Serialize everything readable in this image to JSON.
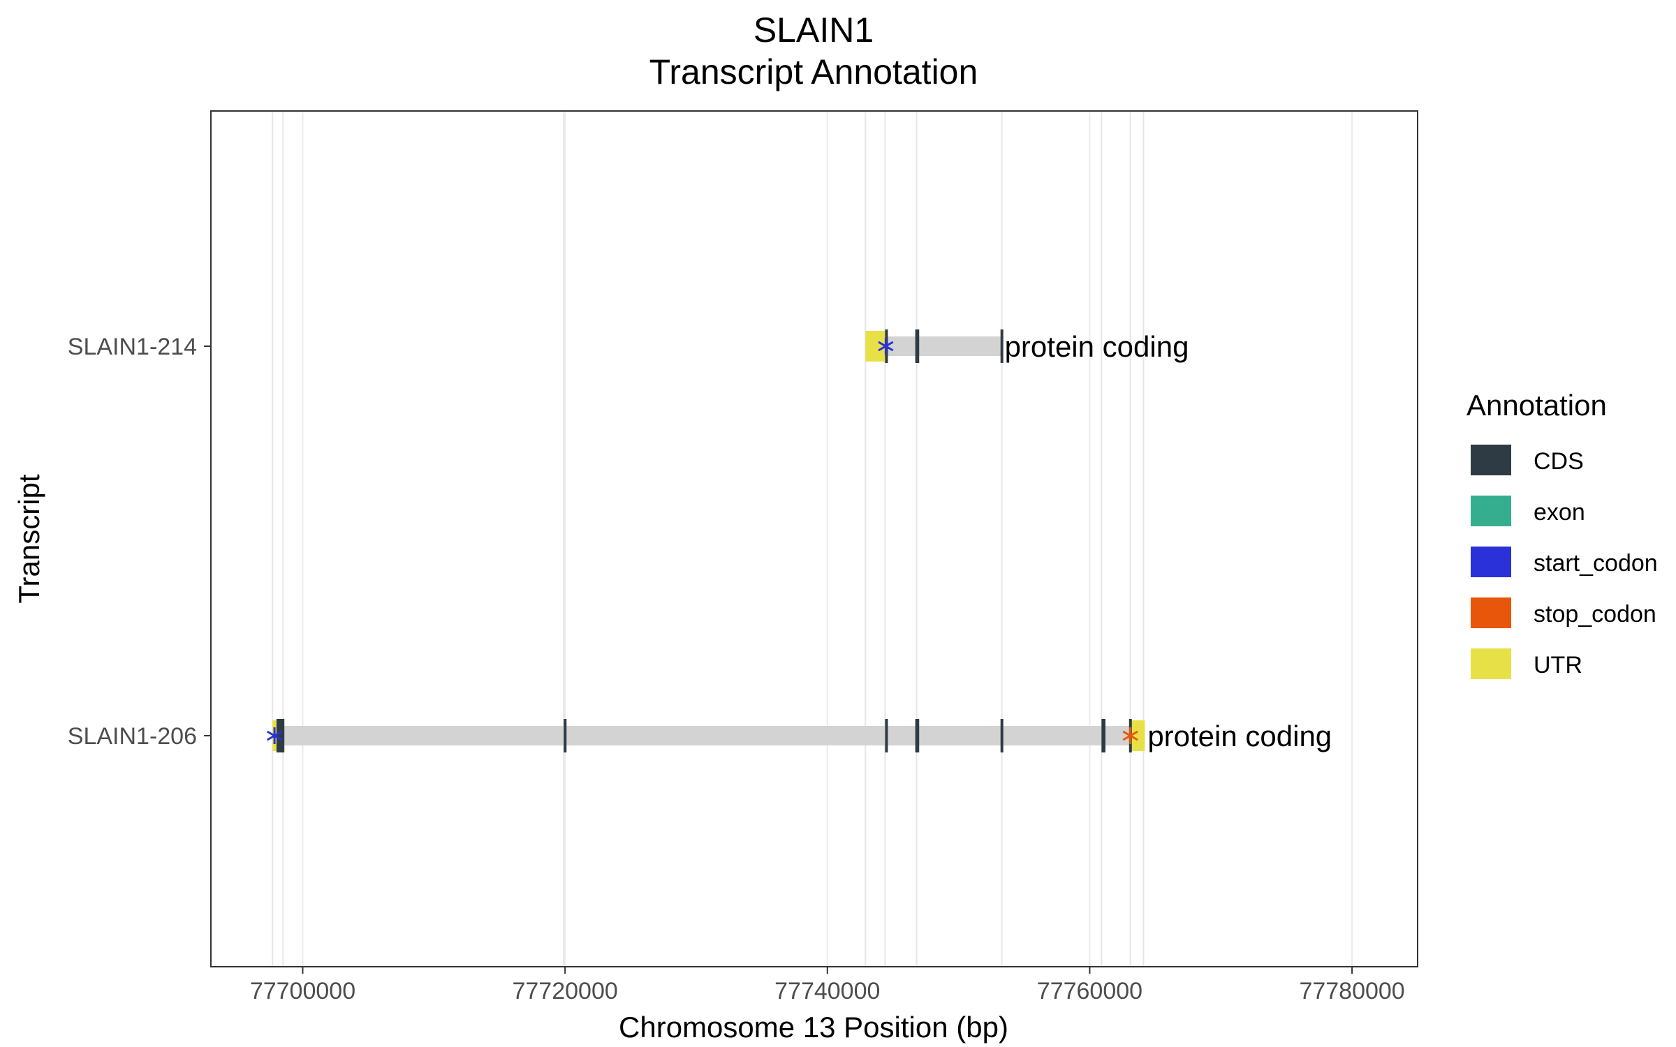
{
  "chart_data": {
    "type": "gene-track",
    "title": [
      "SLAIN1",
      "Transcript Annotation"
    ],
    "xlabel": "Chromosome 13 Position (bp)",
    "ylabel": "Transcript",
    "xlim": [
      77693000,
      77785000
    ],
    "x_ticks": [
      {
        "value": 77700000,
        "label": "77700000"
      },
      {
        "value": 77720000,
        "label": "77720000"
      },
      {
        "value": 77740000,
        "label": "77740000"
      },
      {
        "value": 77760000,
        "label": "77760000"
      },
      {
        "value": 77780000,
        "label": "77780000"
      }
    ],
    "grid": {
      "major_x": true,
      "major_y": false,
      "vertical_lines_at_feature_positions": true
    },
    "legend": {
      "title": "Annotation",
      "position": "right",
      "entries": [
        {
          "label": "CDS",
          "color": "#2e3b44"
        },
        {
          "label": "exon",
          "color": "#35ad8f"
        },
        {
          "label": "start_codon",
          "color": "#2a31d8"
        },
        {
          "label": "stop_codon",
          "color": "#e8560c"
        },
        {
          "label": "UTR",
          "color": "#e8e047"
        }
      ]
    },
    "intron_color": "#d3d3d3",
    "transcripts": [
      {
        "name": "SLAIN1-214",
        "biotype": "protein coding",
        "start": 77742900,
        "end": 77753300,
        "utr": [
          [
            77742900,
            77744400
          ]
        ],
        "cds": [
          [
            77744400,
            77744500
          ],
          [
            77746700,
            77747000
          ],
          [
            77753200,
            77753300
          ]
        ],
        "start_codons": [
          77744450
        ],
        "stop_codons": []
      },
      {
        "name": "SLAIN1-206",
        "biotype": "protein coding",
        "start": 77697700,
        "end": 77764200,
        "utr": [
          [
            77697700,
            77698000
          ],
          [
            77763200,
            77764200
          ]
        ],
        "cds": [
          [
            77698000,
            77698600
          ],
          [
            77719900,
            77720000
          ],
          [
            77744400,
            77744500
          ],
          [
            77746700,
            77747000
          ],
          [
            77753200,
            77753300
          ],
          [
            77760900,
            77761200
          ],
          [
            77763000,
            77763200
          ]
        ],
        "start_codons": [
          77697850
        ],
        "stop_codons": [
          77763100
        ]
      }
    ],
    "feature_gridlines": [
      77697700,
      77698500,
      77719900,
      77742900,
      77744400,
      77746800,
      77753300,
      77760900,
      77763100,
      77764100
    ]
  }
}
